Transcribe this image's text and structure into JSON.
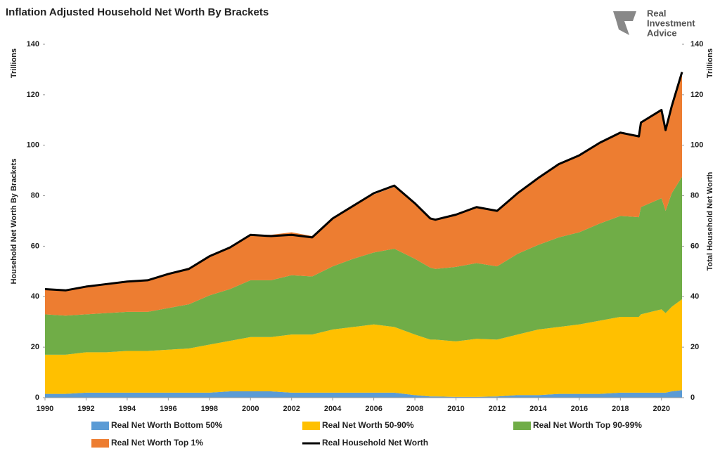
{
  "chart_data": {
    "type": "area",
    "title": "Inflation Adjusted Household Net Worth By Brackets",
    "logo": [
      "Real",
      "Investment",
      "Advice"
    ],
    "y_unit": "Trillions",
    "y2_unit": "Trillions",
    "ylabel": "Household Net Worth By Brackets",
    "y2label": "Total Household Net Worth",
    "stacked": true,
    "x": [
      1990,
      1991,
      1992,
      1993,
      1994,
      1995,
      1996,
      1997,
      1998,
      1999,
      2000,
      2001,
      2002,
      2003,
      2004,
      2005,
      2006,
      2007,
      2008,
      2008.75,
      2009,
      2010,
      2011,
      2012,
      2013,
      2014,
      2015,
      2016,
      2017,
      2018,
      2018.9,
      2019,
      2020,
      2020.2,
      2020.5,
      2021
    ],
    "xlim": [
      1990,
      2021
    ],
    "xticks": [
      1990,
      1992,
      1994,
      1996,
      1998,
      2000,
      2002,
      2004,
      2006,
      2008,
      2010,
      2012,
      2014,
      2016,
      2018,
      2020
    ],
    "ylim": [
      0,
      140
    ],
    "yticks": [
      0,
      20,
      40,
      60,
      80,
      100,
      120,
      140
    ],
    "y2lim": [
      0,
      140
    ],
    "y2ticks": [
      0,
      20,
      40,
      60,
      80,
      100,
      120,
      140
    ],
    "series": [
      {
        "name": "Real Net Worth Bottom 50%",
        "color": "#5b9bd5",
        "values": [
          1.5,
          1.5,
          2,
          2,
          2,
          2,
          2,
          2,
          2,
          2.5,
          2.5,
          2.5,
          2,
          2,
          2,
          2,
          2,
          2,
          1,
          0.5,
          0.5,
          0.3,
          0.3,
          0.5,
          1,
          1,
          1.5,
          1.5,
          1.5,
          2,
          2,
          2,
          2,
          2,
          2.5,
          3
        ]
      },
      {
        "name": "Real Net Worth 50-90%",
        "color": "#ffc000",
        "values": [
          15.5,
          15.5,
          16,
          16,
          16.5,
          16.5,
          17,
          17.5,
          19,
          20,
          21.5,
          21.5,
          23,
          23,
          25,
          26,
          27,
          26,
          24,
          22.5,
          22.5,
          22,
          23,
          22.5,
          24,
          26,
          26.5,
          27.5,
          29,
          30,
          30,
          31,
          33,
          31.5,
          33.5,
          36
        ]
      },
      {
        "name": "Real Net Worth Top 90-99%",
        "color": "#70ad47",
        "values": [
          16,
          15.5,
          15,
          15.5,
          15.5,
          15.5,
          16.5,
          17.5,
          19.5,
          20.5,
          22.5,
          22.5,
          23.5,
          23,
          25,
          27,
          28.5,
          31,
          30,
          28.5,
          28,
          29.5,
          30,
          29,
          32,
          33.5,
          35.5,
          36.5,
          38.5,
          40,
          39.5,
          42.5,
          44,
          40.5,
          45,
          48.5
        ]
      },
      {
        "name": "Real Net Worth Top 1%",
        "color": "#ed7d31",
        "values": [
          10,
          10,
          11,
          11.5,
          12,
          12.5,
          13.5,
          14.5,
          15.5,
          16.5,
          18,
          18,
          17,
          16,
          19,
          21,
          23,
          24.5,
          22,
          20,
          19.5,
          20.5,
          22,
          22,
          23.5,
          26.5,
          29,
          30.5,
          32,
          33,
          32.5,
          33.5,
          35,
          32,
          34.5,
          40.5
        ]
      },
      {
        "name": "Real Household Net Worth",
        "color": "#000000",
        "type": "line",
        "axis": "y2",
        "values": [
          43,
          42.5,
          44,
          45,
          46,
          46.5,
          49,
          51,
          56,
          59.5,
          64.5,
          64,
          64.5,
          63.5,
          71,
          76,
          81,
          84,
          77,
          71,
          70.5,
          72.5,
          75.5,
          74,
          81,
          87,
          92.5,
          96,
          101,
          105,
          103.5,
          109,
          114,
          106,
          115.5,
          129
        ]
      }
    ]
  }
}
